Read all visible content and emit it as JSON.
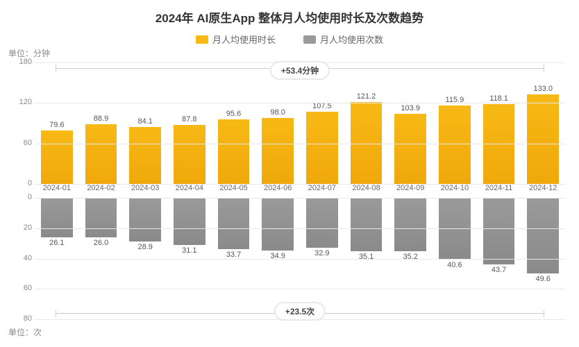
{
  "title": "2024年 AI原生App 整体月人均使用时长及次数趋势",
  "title_fontsize": 17,
  "title_color": "#333333",
  "unit_top": "单位：分钟",
  "unit_bottom": "单位：次",
  "legend": {
    "series1": {
      "label": "月人均使用时长",
      "color": "#f7b916"
    },
    "series2": {
      "label": "月人均使用次数",
      "color": "#9a9a9a"
    }
  },
  "categories": [
    "2024-01",
    "2024-02",
    "2024-03",
    "2024-04",
    "2024-05",
    "2024-06",
    "2024-07",
    "2024-08",
    "2024-09",
    "2024-10",
    "2024-11",
    "2024-12"
  ],
  "top_chart": {
    "type": "bar",
    "values": [
      79.6,
      88.9,
      84.1,
      87.8,
      95.6,
      98.0,
      107.5,
      121.2,
      103.9,
      115.9,
      118.1,
      133.0
    ],
    "value_labels": [
      "79.6",
      "88.9",
      "84.1",
      "87.8",
      "95.6",
      "98.0",
      "107.5",
      "121.2",
      "103.9",
      "115.9",
      "118.1",
      "133.0"
    ],
    "bar_color": "#f7b916",
    "ylim": [
      0,
      180
    ],
    "yticks": [
      0,
      60,
      120,
      180
    ],
    "ytick_labels": [
      "0",
      "60",
      "120",
      "180"
    ],
    "grid_color": "#e8e8e8",
    "annotation": "+53.4分钟",
    "label_fontsize": 11,
    "label_color": "#555555"
  },
  "bottom_chart": {
    "type": "bar_inverted",
    "values": [
      26.1,
      26.0,
      28.9,
      31.1,
      33.7,
      34.9,
      32.9,
      35.1,
      35.2,
      40.6,
      43.7,
      49.6
    ],
    "value_labels": [
      "26.1",
      "26.0",
      "28.9",
      "31.1",
      "33.7",
      "34.9",
      "32.9",
      "35.1",
      "35.2",
      "40.6",
      "43.7",
      "49.6"
    ],
    "bar_color": "#9a9a9a",
    "ylim": [
      0,
      80
    ],
    "yticks": [
      0,
      20,
      40,
      60,
      80
    ],
    "ytick_labels": [
      "0",
      "20",
      "40",
      "60",
      "80"
    ],
    "grid_color": "#e8e8e8",
    "annotation": "+23.5次",
    "label_fontsize": 11,
    "label_color": "#555555"
  },
  "axis_label_color": "#888888",
  "axis_label_fontsize": 11,
  "category_label_color": "#666666",
  "category_label_fontsize": 11,
  "background_color": "#ffffff"
}
